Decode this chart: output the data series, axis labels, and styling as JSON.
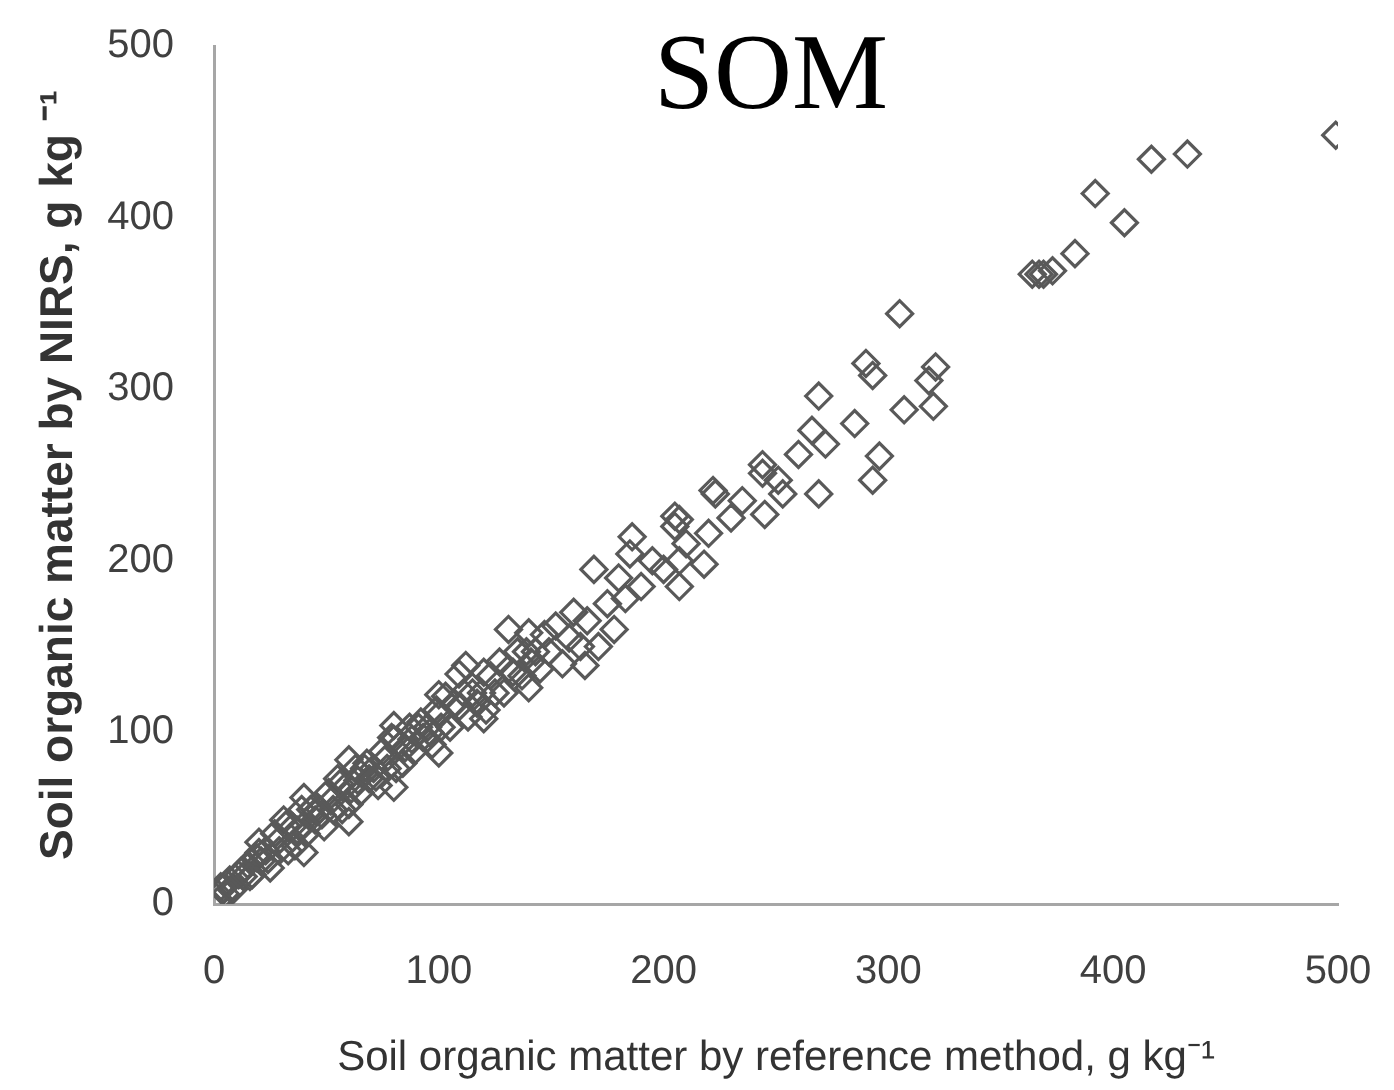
{
  "chart_data": {
    "type": "scatter",
    "title": "SOM",
    "xlabel": "Soil organic matter by reference method, g kg⁻¹",
    "ylabel": "Soil organic matter by NIRS, g kg ⁻¹",
    "x": [
      1,
      3,
      5,
      7,
      9,
      11,
      13,
      15,
      17,
      19,
      21,
      23,
      25,
      27,
      29,
      31,
      33,
      35,
      37,
      39,
      41,
      43,
      45,
      47,
      49,
      51,
      53,
      55,
      57,
      59,
      61,
      63,
      65,
      67,
      69,
      71,
      73,
      75,
      77,
      79,
      81,
      83,
      85,
      87,
      89,
      91,
      93,
      95,
      97,
      99,
      101,
      103,
      105,
      107,
      109,
      111,
      113,
      115,
      117,
      119,
      121,
      123,
      125,
      127,
      129,
      131,
      133,
      135,
      137,
      139,
      141,
      143,
      145,
      147,
      149,
      4,
      8,
      12,
      16,
      20,
      24,
      28,
      32,
      36,
      40,
      44,
      48,
      52,
      56,
      60,
      64,
      68,
      72,
      76,
      80,
      84,
      88,
      92,
      96,
      100,
      40,
      60,
      80,
      100,
      120,
      140,
      20,
      40,
      60,
      80,
      100,
      109,
      112,
      131,
      120,
      140,
      152,
      155,
      158,
      160,
      163,
      165,
      166,
      169,
      171,
      175,
      178,
      180,
      183,
      185,
      186,
      190,
      195,
      200,
      205,
      205,
      207,
      207,
      207,
      210,
      218,
      220,
      222,
      223,
      230,
      235,
      244,
      244,
      245,
      251,
      253,
      260,
      266,
      269,
      269,
      272,
      285,
      290,
      293,
      293,
      296,
      305,
      307,
      318,
      320,
      321,
      364,
      367,
      369,
      373,
      383,
      392,
      405,
      417,
      433,
      499
    ],
    "values": [
      4,
      10,
      6,
      14,
      9,
      17,
      16,
      23,
      17,
      27,
      25,
      31,
      21,
      41,
      31,
      49,
      31,
      45,
      43,
      55,
      41,
      55,
      49,
      55,
      45,
      65,
      55,
      73,
      55,
      69,
      67,
      79,
      65,
      79,
      73,
      79,
      69,
      89,
      79,
      97,
      79,
      93,
      91,
      103,
      89,
      103,
      97,
      103,
      93,
      113,
      103,
      121,
      103,
      117,
      115,
      123,
      109,
      123,
      117,
      123,
      113,
      133,
      123,
      141,
      123,
      137,
      135,
      147,
      133,
      147,
      141,
      147,
      137,
      157,
      147,
      9,
      8,
      19,
      16,
      30,
      26,
      36,
      46,
      34,
      46,
      56,
      52,
      60,
      70,
      58,
      72,
      82,
      74,
      84,
      96,
      82,
      96,
      106,
      100,
      110,
      30,
      48,
      68,
      88,
      108,
      126,
      36,
      62,
      84,
      104,
      122,
      134,
      139,
      160,
      135,
      158,
      162,
      140,
      155,
      170,
      150,
      139,
      165,
      195,
      150,
      175,
      160,
      190,
      178,
      204,
      214,
      185,
      200,
      195,
      220,
      226,
      200,
      224,
      185,
      210,
      198,
      216,
      241,
      239,
      225,
      235,
      251,
      256,
      227,
      247,
      239,
      262,
      276,
      239,
      296,
      268,
      280,
      315,
      247,
      308,
      261,
      344,
      288,
      305,
      290,
      313,
      367,
      367,
      367,
      369,
      379,
      414,
      397,
      434,
      437,
      448
    ],
    "color": "#595959",
    "marker": "diamond",
    "xlim": [
      0,
      500
    ],
    "ylim": [
      0,
      500
    ],
    "xticks": [
      0,
      100,
      200,
      300,
      400,
      500
    ],
    "yticks": [
      0,
      100,
      200,
      300,
      400,
      500
    ]
  }
}
